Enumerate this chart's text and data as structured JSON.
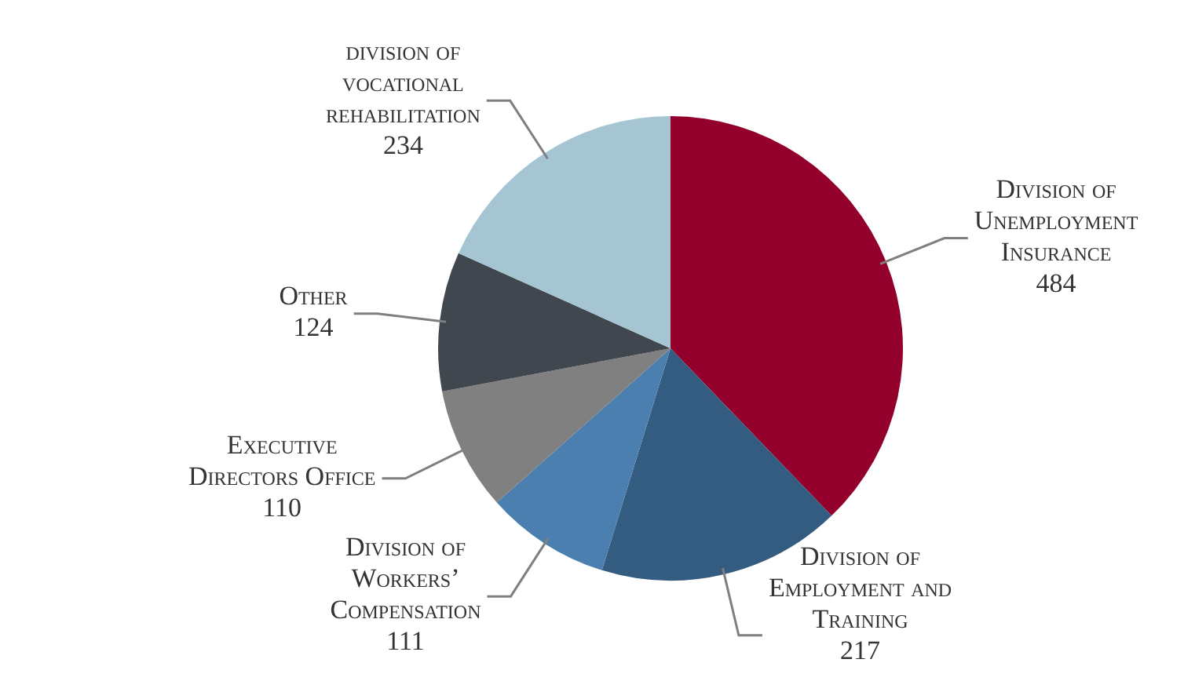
{
  "chart_data": {
    "type": "pie",
    "categories": [
      "Division of Unemployment Insurance",
      "Division of Employment and Training",
      "Division of Workers’ Compensation",
      "Executive Directors Office",
      "Other",
      "division of vocational rehabilitation"
    ],
    "values": [
      484,
      217,
      111,
      110,
      124,
      234
    ],
    "colors": [
      "#92002b",
      "#335c80",
      "#4a7fb0",
      "#808080",
      "#40474e",
      "#a5c5d3"
    ],
    "data_labels": true,
    "legend": false
  }
}
